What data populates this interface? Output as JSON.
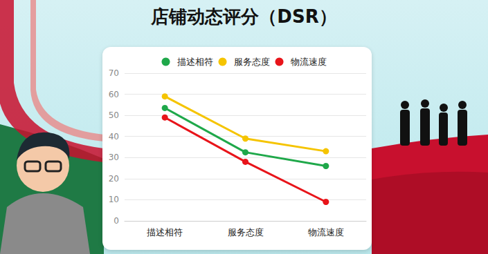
{
  "chart_data": {
    "type": "line",
    "title": "店铺动态评分（DSR）",
    "categories": [
      "描述相符",
      "服务态度",
      "物流速度"
    ],
    "series": [
      {
        "name": "描述相符",
        "color": "#1fa84a",
        "values": [
          53.5,
          32.5,
          26
        ]
      },
      {
        "name": "服务态度",
        "color": "#f5c400",
        "values": [
          59,
          39,
          33
        ]
      },
      {
        "name": "物流速度",
        "color": "#e8141a",
        "values": [
          49,
          28,
          9
        ]
      }
    ],
    "ylim": [
      0,
      70
    ],
    "yticks": [
      0,
      10,
      20,
      30,
      40,
      50,
      60,
      70
    ],
    "grid": true,
    "legend": "top",
    "marker": "circle"
  }
}
